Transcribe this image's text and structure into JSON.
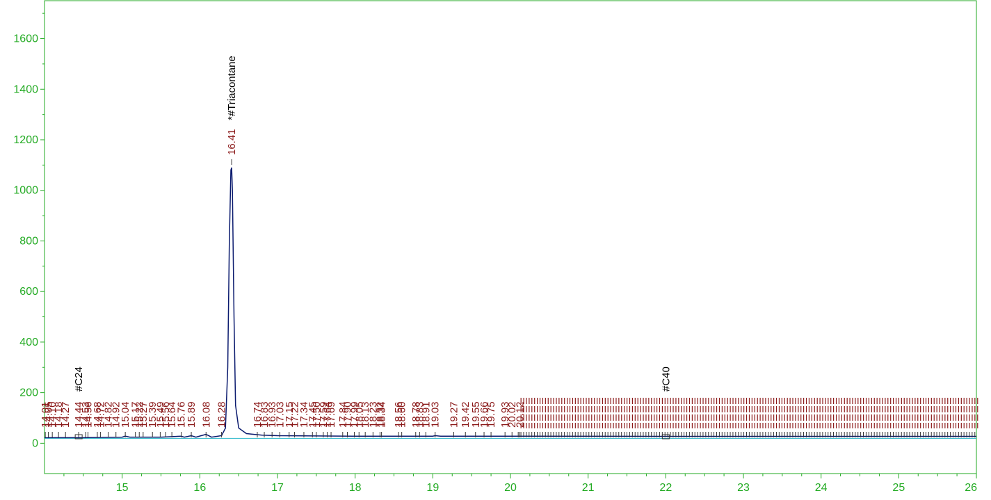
{
  "chart_data": {
    "type": "line",
    "title": "",
    "xlabel": "",
    "ylabel": "",
    "xlim": [
      14.0,
      26.0
    ],
    "ylim": [
      -120,
      1750
    ],
    "x_ticks": [
      "15",
      "16",
      "17",
      "18",
      "19",
      "20",
      "21",
      "22",
      "23",
      "24",
      "25",
      "26"
    ],
    "y_ticks": [
      "0",
      "200",
      "400",
      "600",
      "800",
      "1000",
      "1200",
      "1400",
      "1600"
    ],
    "baseline_level": 22,
    "colors": {
      "frame": "#22aa22",
      "trace": "#0a1a6e",
      "baseline": "#2ab7c9",
      "peak_label": "#8b1a1a",
      "compound_label": "#000000"
    },
    "trace": {
      "x": [
        14.0,
        14.5,
        15.0,
        15.04,
        15.1,
        15.5,
        15.76,
        15.8,
        15.89,
        15.95,
        16.08,
        16.15,
        16.28,
        16.33,
        16.36,
        16.38,
        16.4,
        16.41,
        16.42,
        16.44,
        16.46,
        16.5,
        16.6,
        16.8,
        17.0,
        18.0,
        19.0,
        19.03,
        19.1,
        20.0,
        22.0,
        24.0,
        26.0
      ],
      "y": [
        22,
        22,
        24,
        28,
        24,
        24,
        28,
        24,
        30,
        24,
        35,
        24,
        30,
        60,
        300,
        800,
        1080,
        1090,
        1000,
        500,
        150,
        60,
        38,
        32,
        30,
        28,
        28,
        30,
        28,
        28,
        27,
        27,
        27
      ]
    },
    "peaks": [
      {
        "rt": "14.01",
        "y": 22
      },
      {
        "rt": "14.05",
        "y": 22
      },
      {
        "rt": "14.10",
        "y": 22
      },
      {
        "rt": "14.18",
        "y": 22
      },
      {
        "rt": "14.27",
        "y": 22
      },
      {
        "rt": "14.44",
        "y": 22
      },
      {
        "rt": "14.53",
        "y": 22
      },
      {
        "rt": "14.56",
        "y": 22
      },
      {
        "rt": "14.68",
        "y": 22
      },
      {
        "rt": "14.72",
        "y": 22
      },
      {
        "rt": "14.82",
        "y": 22
      },
      {
        "rt": "14.92",
        "y": 22
      },
      {
        "rt": "15.04",
        "y": 28
      },
      {
        "rt": "15.17",
        "y": 24
      },
      {
        "rt": "15.22",
        "y": 24
      },
      {
        "rt": "15.27",
        "y": 24
      },
      {
        "rt": "15.39",
        "y": 24
      },
      {
        "rt": "15.49",
        "y": 24
      },
      {
        "rt": "15.56",
        "y": 24
      },
      {
        "rt": "15.64",
        "y": 24
      },
      {
        "rt": "15.76",
        "y": 28
      },
      {
        "rt": "15.89",
        "y": 30
      },
      {
        "rt": "16.08",
        "y": 35
      },
      {
        "rt": "16.28",
        "y": 30
      },
      {
        "rt": "16.41",
        "y": 1090
      },
      {
        "rt": "16.74",
        "y": 33
      },
      {
        "rt": "16.83",
        "y": 32
      },
      {
        "rt": "16.93",
        "y": 31
      },
      {
        "rt": "17.03",
        "y": 30
      },
      {
        "rt": "17.15",
        "y": 30
      },
      {
        "rt": "17.22",
        "y": 30
      },
      {
        "rt": "17.34",
        "y": 30
      },
      {
        "rt": "17.45",
        "y": 29
      },
      {
        "rt": "17.50",
        "y": 29
      },
      {
        "rt": "17.59",
        "y": 29
      },
      {
        "rt": "17.64",
        "y": 29
      },
      {
        "rt": "17.69",
        "y": 29
      },
      {
        "rt": "17.84",
        "y": 29
      },
      {
        "rt": "17.90",
        "y": 29
      },
      {
        "rt": "17.99",
        "y": 29
      },
      {
        "rt": "18.05",
        "y": 28
      },
      {
        "rt": "18.13",
        "y": 28
      },
      {
        "rt": "18.23",
        "y": 28
      },
      {
        "rt": "18.32",
        "y": 28
      },
      {
        "rt": "18.34",
        "y": 28
      },
      {
        "rt": "18.56",
        "y": 28
      },
      {
        "rt": "18.60",
        "y": 28
      },
      {
        "rt": "18.78",
        "y": 28
      },
      {
        "rt": "18.83",
        "y": 28
      },
      {
        "rt": "18.91",
        "y": 28
      },
      {
        "rt": "19.03",
        "y": 30
      },
      {
        "rt": "19.27",
        "y": 28
      },
      {
        "rt": "19.42",
        "y": 28
      },
      {
        "rt": "19.55",
        "y": 28
      },
      {
        "rt": "19.66",
        "y": 28
      },
      {
        "rt": "19.75",
        "y": 28
      },
      {
        "rt": "19.93",
        "y": 28
      },
      {
        "rt": "20.02",
        "y": 28
      },
      {
        "rt": "20.12",
        "y": 28
      }
    ],
    "compounds": [
      {
        "name": "#C24",
        "rt": 14.44
      },
      {
        "name": "*#Triacontane",
        "rt": 16.41
      },
      {
        "name": "#C40",
        "rt": 22.0
      }
    ],
    "dense_region": {
      "x_start": 20.1,
      "x_end": 26.0
    }
  }
}
